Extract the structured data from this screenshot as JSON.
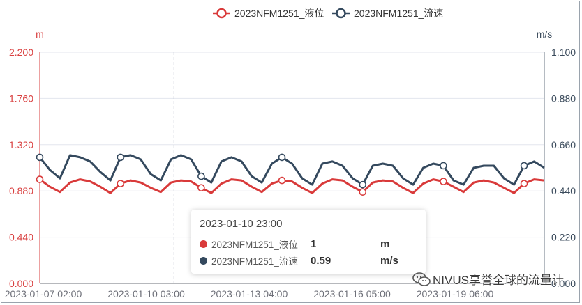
{
  "chart_data": {
    "type": "line",
    "legend": {
      "position": "top-center",
      "entries": [
        "2023NFM1251_液位",
        "2023NFM1251_流速"
      ]
    },
    "x_tick_labels": [
      "2023-01-07 02:00",
      "2023-01-10 03:00",
      "2023-01-13 04:00",
      "2023-01-16 05:00",
      "2023-01-19 06:00"
    ],
    "y_left": {
      "label": "m",
      "ticks": [
        "0.000",
        "0.440",
        "0.880",
        "1.320",
        "1.760",
        "2.200"
      ],
      "range": [
        0,
        2.2
      ],
      "color": "#d94040"
    },
    "y_right": {
      "label": "m/s",
      "ticks": [
        "0.000",
        "0.220",
        "0.440",
        "0.660",
        "0.880",
        "1.100"
      ],
      "range": [
        0,
        1.1
      ],
      "color": "#3b4b5c"
    },
    "grid": true,
    "series": [
      {
        "name": "2023NFM1251_液位",
        "axis": "left",
        "color": "#d93a3a",
        "unit": "m",
        "daily_min": 0.88,
        "daily_max": 1.0,
        "values": [
          0.99,
          0.92,
          0.87,
          0.96,
          0.99,
          0.97,
          0.92,
          0.86,
          0.95,
          0.98,
          0.96,
          0.91,
          0.87,
          0.96,
          0.98,
          0.97,
          0.91,
          0.86,
          0.95,
          0.99,
          0.98,
          0.92,
          0.87,
          0.95,
          0.98,
          0.97,
          0.91,
          0.86,
          0.95,
          0.99,
          0.98,
          0.92,
          0.87,
          0.96,
          0.98,
          0.97,
          0.91,
          0.86,
          0.95,
          0.99,
          0.97,
          0.92,
          0.87,
          0.96,
          0.98,
          0.96,
          0.91,
          0.86,
          0.95,
          0.99,
          0.98
        ]
      },
      {
        "name": "2023NFM1251_流速",
        "axis": "right",
        "color": "#34495e",
        "unit": "m/s",
        "values": [
          0.6,
          0.54,
          0.5,
          0.61,
          0.6,
          0.58,
          0.53,
          0.49,
          0.6,
          0.61,
          0.59,
          0.52,
          0.49,
          0.59,
          0.61,
          0.59,
          0.51,
          0.48,
          0.58,
          0.6,
          0.58,
          0.51,
          0.48,
          0.57,
          0.6,
          0.57,
          0.5,
          0.47,
          0.57,
          0.58,
          0.56,
          0.5,
          0.47,
          0.56,
          0.57,
          0.56,
          0.5,
          0.47,
          0.55,
          0.57,
          0.56,
          0.49,
          0.47,
          0.55,
          0.56,
          0.56,
          0.5,
          0.47,
          0.56,
          0.58,
          0.55
        ]
      }
    ],
    "cursor_x": "2023-01-10 23:00"
  },
  "tooltip": {
    "title": "2023-01-10 23:00",
    "rows": [
      {
        "name": "2023NFM1251_液位",
        "value": "1",
        "unit": "m",
        "color": "#d93a3a"
      },
      {
        "name": "2023NFM1251_流速",
        "value": "0.59",
        "unit": "m/s",
        "color": "#34495e"
      }
    ]
  },
  "watermark": "NIVUS享誉全球的流量计"
}
